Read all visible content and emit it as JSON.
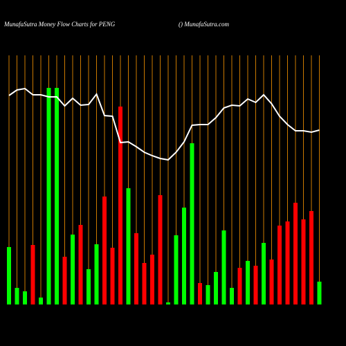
{
  "chart_data": {
    "type": "bar",
    "title": "MunafaSutra  Money Flow  Charts for PENG",
    "subtitle": "() MunafaSutra.com",
    "ylim": [
      0,
      360
    ],
    "grid_color": "#cc7a00",
    "line_color": "#ffffff",
    "series": [
      {
        "values": [
          83,
          24,
          19,
          86,
          10,
          313,
          313,
          69,
          101,
          115,
          51,
          87,
          156,
          82,
          286,
          168,
          103,
          60,
          72,
          158,
          3,
          100,
          140,
          233,
          31,
          28,
          47,
          107,
          24,
          53,
          63,
          56,
          89,
          65,
          114,
          120,
          147,
          123,
          135,
          33
        ],
        "colors": [
          "#00ff00",
          "#00ff00",
          "#00ff00",
          "#ff0000",
          "#00ff00",
          "#00ff00",
          "#00ff00",
          "#ff0000",
          "#00ff00",
          "#ff0000",
          "#00ff00",
          "#00ff00",
          "#ff0000",
          "#ff0000",
          "#ff0000",
          "#00ff00",
          "#ff0000",
          "#ff0000",
          "#ff0000",
          "#ff0000",
          "#00ff00",
          "#00ff00",
          "#00ff00",
          "#00ff00",
          "#ff0000",
          "#00ff00",
          "#00ff00",
          "#00ff00",
          "#00ff00",
          "#ff0000",
          "#00ff00",
          "#ff0000",
          "#00ff00",
          "#ff0000",
          "#ff0000",
          "#ff0000",
          "#ff0000",
          "#ff0000",
          "#ff0000",
          "#00ff00"
        ]
      },
      {
        "values": [
          302,
          310,
          312,
          303,
          303,
          300,
          300,
          287,
          298,
          288,
          289,
          304,
          273,
          272,
          234,
          235,
          228,
          220,
          215,
          211,
          209,
          220,
          235,
          259,
          260,
          260,
          270,
          284,
          288,
          287,
          297,
          292,
          303,
          290,
          272,
          260,
          251,
          251,
          249,
          252
        ]
      }
    ]
  }
}
